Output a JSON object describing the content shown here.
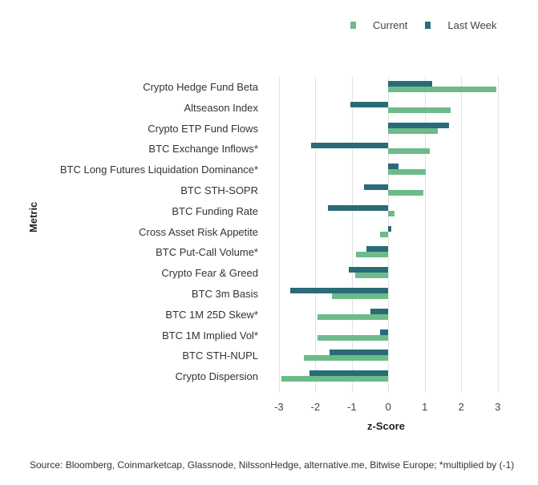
{
  "chart_data": {
    "type": "bar",
    "orientation": "horizontal",
    "title": "",
    "xlabel": "z-Score",
    "ylabel": "Metric",
    "xlim": [
      -3,
      3
    ],
    "xticks": [
      "-3",
      "-2",
      "-1",
      "0",
      "1",
      "2",
      "3"
    ],
    "grid": true,
    "legend_position": "top-right",
    "categories": [
      "Crypto Hedge Fund Beta",
      "Altseason Index",
      "Crypto ETP Fund Flows",
      "BTC Exchange Inflows*",
      "BTC Long Futures Liquidation Dominance*",
      "BTC STH-SOPR",
      "BTC Funding Rate",
      "Cross Asset Risk Appetite",
      "BTC Put-Call Volume*",
      "Crypto Fear & Greed",
      "BTC 3m Basis",
      "BTC 1M 25D Skew*",
      "BTC 1M Implied Vol*",
      "BTC STH-NUPL",
      "Crypto Dispersion"
    ],
    "series": [
      {
        "name": "Current",
        "color": "#6dbb8a",
        "values": [
          2.95,
          1.71,
          1.36,
          1.13,
          1.03,
          0.97,
          0.18,
          -0.22,
          -0.89,
          -0.9,
          -1.55,
          -1.93,
          -1.93,
          -2.32,
          -2.92
        ]
      },
      {
        "name": "Last Week",
        "color": "#2a6b78",
        "values": [
          1.2,
          -1.05,
          1.66,
          -2.12,
          0.27,
          -0.66,
          -1.65,
          0.09,
          -0.59,
          -1.08,
          -2.69,
          -0.5,
          -0.22,
          -1.62,
          -2.16
        ]
      }
    ]
  },
  "legend": {
    "current": "Current",
    "last_week": "Last Week"
  },
  "axis": {
    "xlabel": "z-Score",
    "ylabel": "Metric"
  },
  "source": "Source: Bloomberg, Coinmarketcap, Glassnode, NilssonHedge, alternative.me, Bitwise Europe; *multiplied by (-1)"
}
